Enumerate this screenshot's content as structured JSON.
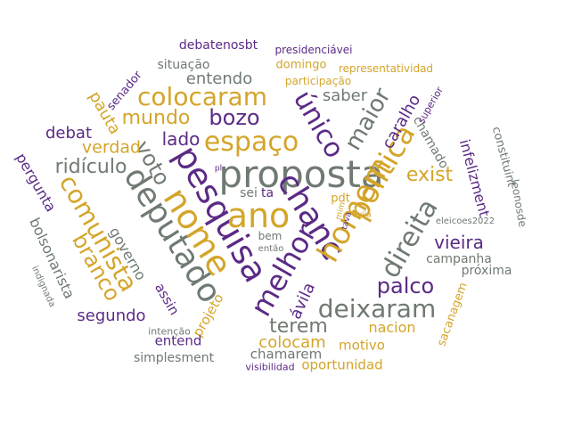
{
  "palette": {
    "purple": "#5b2a86",
    "gold": "#d4a52a",
    "gray": "#6f7a72"
  },
  "words": [
    {
      "text": "proposta",
      "color": "gray"
    },
    {
      "text": "pesquisa",
      "color": "purple"
    },
    {
      "text": "deputado",
      "color": "gray"
    },
    {
      "text": "nome",
      "color": "gold"
    },
    {
      "text": "ano",
      "color": "gold"
    },
    {
      "text": "chanc",
      "color": "purple"
    },
    {
      "text": "melhor",
      "color": "purple"
    },
    {
      "text": "homem",
      "color": "gold"
    },
    {
      "text": "política",
      "color": "gold"
    },
    {
      "text": "direita",
      "color": "gray"
    },
    {
      "text": "espaço",
      "color": "gold"
    },
    {
      "text": "colocaram",
      "color": "gold"
    },
    {
      "text": "único",
      "color": "purple"
    },
    {
      "text": "maior",
      "color": "gray"
    },
    {
      "text": "comunista",
      "color": "gold"
    },
    {
      "text": "voto",
      "color": "gray"
    },
    {
      "text": "branco",
      "color": "gold"
    },
    {
      "text": "deixaram",
      "color": "gray"
    },
    {
      "text": "bozo",
      "color": "purple"
    },
    {
      "text": "mundo",
      "color": "gold"
    },
    {
      "text": "ridículo",
      "color": "gray"
    },
    {
      "text": "entendo",
      "color": "gray"
    },
    {
      "text": "palco",
      "color": "purple"
    },
    {
      "text": "terem",
      "color": "gray"
    },
    {
      "text": "exist",
      "color": "gold"
    },
    {
      "text": "vieira",
      "color": "purple"
    },
    {
      "text": "lado",
      "color": "purple"
    },
    {
      "text": "verdad",
      "color": "gold"
    },
    {
      "text": "debat",
      "color": "purple"
    },
    {
      "text": "pauta",
      "color": "gold"
    },
    {
      "text": "saber",
      "color": "gray"
    },
    {
      "text": "caralho",
      "color": "purple"
    },
    {
      "text": "segundo",
      "color": "purple"
    },
    {
      "text": "colocam",
      "color": "gold"
    },
    {
      "text": "ávila",
      "color": "purple"
    },
    {
      "text": "governo",
      "color": "gray"
    },
    {
      "text": "infelizment",
      "color": "purple"
    },
    {
      "text": "pergunta",
      "color": "purple"
    },
    {
      "text": "bolsonarista",
      "color": "gray"
    },
    {
      "text": "nacion",
      "color": "gold"
    },
    {
      "text": "campanha",
      "color": "gray"
    },
    {
      "text": "próxima",
      "color": "gray"
    },
    {
      "text": "projeto",
      "color": "gold"
    },
    {
      "text": "assin",
      "color": "purple"
    },
    {
      "text": "entend",
      "color": "purple"
    },
    {
      "text": "chamarem",
      "color": "gray"
    },
    {
      "text": "motivo",
      "color": "gold"
    },
    {
      "text": "oportunidad",
      "color": "gold"
    },
    {
      "text": "simplesment",
      "color": "gray"
    },
    {
      "text": "chamado",
      "color": "gray"
    },
    {
      "text": "constituint",
      "color": "gray"
    },
    {
      "text": "sacanagem",
      "color": "gold"
    },
    {
      "text": "leonosde",
      "color": "gray"
    },
    {
      "text": "senador",
      "color": "purple"
    },
    {
      "text": "situação",
      "color": "gray"
    },
    {
      "text": "domingo",
      "color": "gold"
    },
    {
      "text": "debatenosbt",
      "color": "purple"
    },
    {
      "text": "presidenciávei",
      "color": "purple"
    },
    {
      "text": "representatividad",
      "color": "gold"
    },
    {
      "text": "participação",
      "color": "gold"
    },
    {
      "text": "superior",
      "color": "purple"
    },
    {
      "text": "sei",
      "color": "gray"
    },
    {
      "text": "ta",
      "color": "purple"
    },
    {
      "text": "pdt",
      "color": "gold"
    },
    {
      "text": "bem",
      "color": "gray"
    },
    {
      "text": "então",
      "color": "gray"
    },
    {
      "text": "eleicoes2022",
      "color": "gray"
    },
    {
      "text": "avila",
      "color": "gold"
    },
    {
      "text": "tava",
      "color": "purple"
    },
    {
      "text": "mim",
      "color": "gold"
    },
    {
      "text": "pl",
      "color": "purple"
    },
    {
      "text": "intenção",
      "color": "gray"
    },
    {
      "text": "visibilidad",
      "color": "purple"
    },
    {
      "text": "indignada",
      "color": "gray"
    }
  ]
}
